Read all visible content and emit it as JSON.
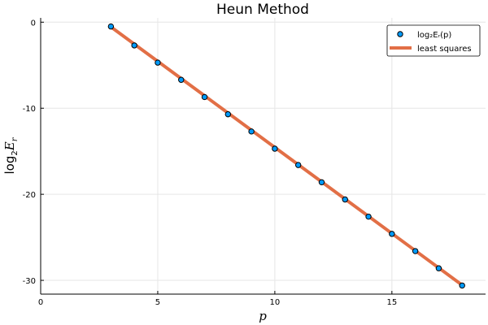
{
  "chart_data": {
    "type": "scatter",
    "title": "Heun Method",
    "xlabel": "p",
    "ylabel_base": "log",
    "ylabel_sub": "2",
    "ylabel_var": "E",
    "ylabel_var_sub": "r",
    "xlim": [
      0,
      19
    ],
    "ylim": [
      -31.6,
      0.5
    ],
    "xticks": [
      0,
      5,
      10,
      15
    ],
    "xtick_labels": [
      "0",
      "5",
      "10",
      "15"
    ],
    "yticks": [
      0,
      -10,
      -20,
      -30
    ],
    "ytick_labels": [
      "0",
      "-10",
      "-20",
      "-30"
    ],
    "grid": true,
    "legend_position": "top-right",
    "series": [
      {
        "name": "log₂Eᵣ(p)",
        "kind": "scatter",
        "color": "#009af9",
        "x": [
          3,
          4,
          5,
          6,
          7,
          8,
          9,
          10,
          11,
          12,
          13,
          14,
          15,
          16,
          17,
          18
        ],
        "y": [
          -0.5,
          -2.7,
          -4.7,
          -6.7,
          -8.7,
          -10.7,
          -12.7,
          -14.7,
          -16.6,
          -18.6,
          -20.6,
          -22.6,
          -24.6,
          -26.6,
          -28.6,
          -30.6
        ]
      },
      {
        "name": "least squares",
        "kind": "line",
        "color": "#e26f46",
        "x": [
          3,
          18
        ],
        "y": [
          -0.55,
          -30.55
        ]
      }
    ]
  }
}
